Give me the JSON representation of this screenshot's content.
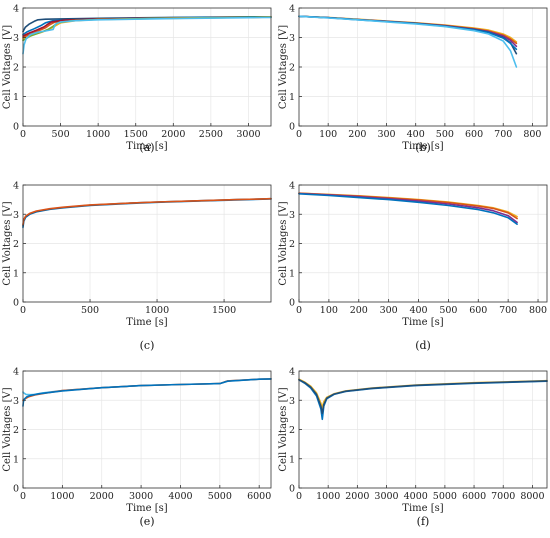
{
  "figure": {
    "colors": [
      "#0072BD",
      "#D95319",
      "#EDB120",
      "#7E2F8E",
      "#77AC30",
      "#4DBEEE",
      "#A2142F",
      "#1F4E79"
    ],
    "grid": true
  },
  "chart_data": [
    {
      "type": "line",
      "panel": "top-left",
      "caption": "(a)",
      "xlabel": "Time [s]",
      "ylabel": "Cell Voltages [V]",
      "xlim": [
        0,
        3300
      ],
      "ylim": [
        0,
        4
      ],
      "xticks": [
        0,
        500,
        1000,
        1500,
        2000,
        2500,
        3000
      ],
      "yticks": [
        0,
        1,
        2,
        3,
        4
      ],
      "series": [
        {
          "color": "#1F4E79",
          "x": [
            0,
            30,
            80,
            150,
            200,
            300,
            500,
            1000,
            2000,
            3000,
            3300
          ],
          "y": [
            3.2,
            3.35,
            3.45,
            3.55,
            3.6,
            3.62,
            3.63,
            3.65,
            3.68,
            3.7,
            3.7
          ]
        },
        {
          "color": "#0072BD",
          "x": [
            0,
            60,
            150,
            250,
            300,
            400,
            600,
            1000,
            2000,
            3000,
            3300
          ],
          "y": [
            3.1,
            3.2,
            3.3,
            3.42,
            3.5,
            3.57,
            3.6,
            3.63,
            3.67,
            3.69,
            3.7
          ]
        },
        {
          "color": "#D95319",
          "x": [
            0,
            100,
            200,
            300,
            350,
            420,
            600,
            1000,
            2000,
            3000,
            3300
          ],
          "y": [
            3.0,
            3.12,
            3.22,
            3.33,
            3.42,
            3.52,
            3.58,
            3.62,
            3.66,
            3.68,
            3.69
          ]
        },
        {
          "color": "#A2142F",
          "x": [
            0,
            80,
            180,
            280,
            330,
            380,
            550,
            1000,
            2000,
            3000,
            3300
          ],
          "y": [
            3.05,
            3.15,
            3.25,
            3.36,
            3.45,
            3.53,
            3.59,
            3.63,
            3.66,
            3.68,
            3.69
          ]
        },
        {
          "color": "#EDB120",
          "x": [
            0,
            120,
            250,
            350,
            420,
            500,
            700,
            1000,
            2000,
            3000,
            3300
          ],
          "y": [
            2.95,
            3.08,
            3.18,
            3.28,
            3.38,
            3.5,
            3.57,
            3.61,
            3.66,
            3.68,
            3.69
          ]
        },
        {
          "color": "#77AC30",
          "x": [
            0,
            100,
            220,
            330,
            400,
            460,
            650,
            1000,
            2000,
            3000,
            3300
          ],
          "y": [
            2.9,
            3.05,
            3.16,
            3.27,
            3.38,
            3.5,
            3.57,
            3.61,
            3.65,
            3.68,
            3.69
          ]
        },
        {
          "color": "#4DBEEE",
          "x": [
            0,
            15,
            40,
            100,
            200,
            300,
            400,
            430,
            500,
            700,
            1000,
            2000,
            3000,
            3300
          ],
          "y": [
            2.45,
            2.75,
            2.95,
            3.1,
            3.18,
            3.22,
            3.27,
            3.45,
            3.53,
            3.57,
            3.6,
            3.64,
            3.67,
            3.68
          ]
        }
      ]
    },
    {
      "type": "line",
      "panel": "top-right",
      "caption": "(b)",
      "xlabel": "Time [s]",
      "ylabel": "Cell Voltages [V]",
      "xlim": [
        0,
        850
      ],
      "ylim": [
        0,
        4
      ],
      "xticks": [
        0,
        100,
        200,
        300,
        400,
        500,
        600,
        700,
        800
      ],
      "yticks": [
        0,
        1,
        2,
        3,
        4
      ],
      "series": [
        {
          "color": "#EDB120",
          "x": [
            0,
            100,
            200,
            300,
            400,
            500,
            600,
            650,
            700,
            725,
            745
          ],
          "y": [
            3.72,
            3.68,
            3.62,
            3.56,
            3.5,
            3.42,
            3.32,
            3.25,
            3.12,
            3.0,
            2.85
          ]
        },
        {
          "color": "#D95319",
          "x": [
            0,
            100,
            200,
            300,
            400,
            500,
            600,
            650,
            700,
            725,
            745
          ],
          "y": [
            3.72,
            3.67,
            3.61,
            3.55,
            3.49,
            3.41,
            3.3,
            3.22,
            3.08,
            2.95,
            2.8
          ]
        },
        {
          "color": "#7E2F8E",
          "x": [
            0,
            100,
            200,
            300,
            400,
            500,
            600,
            650,
            700,
            725,
            745
          ],
          "y": [
            3.72,
            3.67,
            3.61,
            3.55,
            3.48,
            3.4,
            3.28,
            3.2,
            3.05,
            2.9,
            2.7
          ]
        },
        {
          "color": "#1F4E79",
          "x": [
            0,
            100,
            200,
            300,
            400,
            500,
            600,
            650,
            700,
            725,
            745
          ],
          "y": [
            3.72,
            3.67,
            3.61,
            3.54,
            3.48,
            3.39,
            3.27,
            3.18,
            3.0,
            2.82,
            2.45
          ]
        },
        {
          "color": "#0072BD",
          "x": [
            0,
            100,
            200,
            300,
            400,
            500,
            600,
            650,
            700,
            725,
            745
          ],
          "y": [
            3.72,
            3.67,
            3.6,
            3.54,
            3.47,
            3.38,
            3.26,
            3.17,
            2.98,
            2.8,
            2.6
          ]
        },
        {
          "color": "#4DBEEE",
          "x": [
            0,
            100,
            200,
            300,
            400,
            500,
            600,
            650,
            700,
            725,
            745
          ],
          "y": [
            3.72,
            3.66,
            3.6,
            3.53,
            3.46,
            3.37,
            3.23,
            3.12,
            2.88,
            2.55,
            2.0
          ]
        }
      ]
    },
    {
      "type": "line",
      "panel": "middle-left",
      "caption": "(c)",
      "xlabel": "Time [s]",
      "ylabel": "Cell Voltages [V]",
      "xlim": [
        0,
        1850
      ],
      "ylim": [
        0,
        4
      ],
      "xticks": [
        0,
        500,
        1000,
        1500
      ],
      "yticks": [
        0,
        1,
        2,
        3,
        4
      ],
      "series": [
        {
          "color": "#0072BD",
          "x": [
            0,
            5,
            20,
            50,
            100,
            200,
            300,
            500,
            800,
            1000,
            1300,
            1600,
            1850
          ],
          "y": [
            2.55,
            2.75,
            2.9,
            3.0,
            3.08,
            3.17,
            3.22,
            3.3,
            3.37,
            3.41,
            3.45,
            3.49,
            3.52
          ]
        },
        {
          "color": "#1F4E79",
          "x": [
            0,
            5,
            20,
            50,
            100,
            200,
            300,
            500,
            800,
            1000,
            1300,
            1600,
            1850
          ],
          "y": [
            2.6,
            2.8,
            2.92,
            3.02,
            3.1,
            3.18,
            3.23,
            3.31,
            3.38,
            3.42,
            3.46,
            3.5,
            3.53
          ]
        },
        {
          "color": "#D95319",
          "x": [
            0,
            5,
            20,
            50,
            100,
            200,
            300,
            500,
            800,
            1000,
            1300,
            1600,
            1850
          ],
          "y": [
            2.65,
            2.82,
            2.94,
            3.03,
            3.11,
            3.19,
            3.24,
            3.32,
            3.38,
            3.42,
            3.46,
            3.5,
            3.53
          ]
        }
      ]
    },
    {
      "type": "line",
      "panel": "middle-right",
      "caption": "(d)",
      "xlabel": "Time [s]",
      "ylabel": "Cell Voltages [V]",
      "xlim": [
        0,
        830
      ],
      "ylim": [
        0,
        4
      ],
      "xticks": [
        0,
        100,
        200,
        300,
        400,
        500,
        600,
        700,
        800
      ],
      "yticks": [
        0,
        1,
        2,
        3,
        4
      ],
      "series": [
        {
          "color": "#EDB120",
          "x": [
            0,
            100,
            200,
            300,
            400,
            500,
            600,
            650,
            700,
            730
          ],
          "y": [
            3.72,
            3.68,
            3.63,
            3.57,
            3.5,
            3.42,
            3.3,
            3.22,
            3.08,
            2.92
          ]
        },
        {
          "color": "#D95319",
          "x": [
            0,
            100,
            200,
            300,
            400,
            500,
            600,
            650,
            700,
            730
          ],
          "y": [
            3.72,
            3.67,
            3.62,
            3.56,
            3.49,
            3.4,
            3.28,
            3.2,
            3.05,
            2.85
          ]
        },
        {
          "color": "#7E2F8E",
          "x": [
            0,
            100,
            200,
            300,
            400,
            500,
            600,
            650,
            700,
            730
          ],
          "y": [
            3.71,
            3.66,
            3.6,
            3.53,
            3.45,
            3.35,
            3.22,
            3.12,
            2.95,
            2.72
          ]
        },
        {
          "color": "#0072BD",
          "x": [
            0,
            100,
            200,
            300,
            400,
            500,
            600,
            650,
            700,
            730
          ],
          "y": [
            3.7,
            3.64,
            3.57,
            3.5,
            3.41,
            3.3,
            3.16,
            3.05,
            2.88,
            2.66
          ]
        }
      ]
    },
    {
      "type": "line",
      "panel": "bottom-left",
      "caption": "(e)",
      "xlabel": "Time [s]",
      "ylabel": "Cell Voltages [V]",
      "xlim": [
        0,
        6300
      ],
      "ylim": [
        0,
        4
      ],
      "xticks": [
        0,
        1000,
        2000,
        3000,
        4000,
        5000,
        6000
      ],
      "yticks": [
        0,
        1,
        2,
        3,
        4
      ],
      "series": [
        {
          "color": "#4DBEEE",
          "x": [
            0,
            20,
            80,
            200,
            300,
            500,
            1000,
            2000,
            3000,
            4000,
            5000,
            5200,
            6000,
            6300
          ],
          "y": [
            3.28,
            3.25,
            3.2,
            3.19,
            3.2,
            3.25,
            3.33,
            3.43,
            3.5,
            3.54,
            3.57,
            3.66,
            3.72,
            3.73
          ]
        },
        {
          "color": "#D95319",
          "x": [
            0,
            50,
            150,
            300,
            600,
            1000,
            2000,
            3000,
            4000,
            5000,
            5200,
            6000,
            6300
          ],
          "y": [
            3.0,
            3.05,
            3.12,
            3.18,
            3.25,
            3.33,
            3.43,
            3.5,
            3.54,
            3.57,
            3.66,
            3.72,
            3.73
          ]
        },
        {
          "color": "#0072BD",
          "x": [
            0,
            10,
            40,
            100,
            200,
            400,
            1000,
            2000,
            3000,
            4000,
            5000,
            5200,
            6000,
            6300
          ],
          "y": [
            2.8,
            2.95,
            3.05,
            3.12,
            3.17,
            3.22,
            3.32,
            3.43,
            3.5,
            3.54,
            3.57,
            3.65,
            3.72,
            3.73
          ]
        }
      ]
    },
    {
      "type": "line",
      "panel": "bottom-right",
      "caption": "(f)",
      "xlabel": "Time [s]",
      "ylabel": "Cell Voltages [V]",
      "xlim": [
        0,
        8500
      ],
      "ylim": [
        0,
        4
      ],
      "xticks": [
        0,
        1000,
        2000,
        3000,
        4000,
        5000,
        6000,
        7000,
        8000
      ],
      "yticks": [
        0,
        1,
        2,
        3,
        4
      ],
      "series": [
        {
          "color": "#EDB120",
          "x": [
            0,
            200,
            400,
            600,
            750,
            800,
            850,
            950,
            1200,
            1600,
            2500,
            4000,
            6000,
            8500
          ],
          "y": [
            3.72,
            3.62,
            3.48,
            3.25,
            2.9,
            2.75,
            2.95,
            3.1,
            3.22,
            3.32,
            3.42,
            3.52,
            3.6,
            3.67
          ]
        },
        {
          "color": "#0072BD",
          "x": [
            0,
            200,
            400,
            600,
            750,
            800,
            850,
            950,
            1200,
            1600,
            2500,
            4000,
            6000,
            8500
          ],
          "y": [
            3.7,
            3.58,
            3.42,
            3.15,
            2.7,
            2.35,
            2.8,
            3.05,
            3.2,
            3.3,
            3.4,
            3.5,
            3.58,
            3.65
          ]
        },
        {
          "color": "#1F4E79",
          "x": [
            0,
            200,
            400,
            600,
            750,
            800,
            850,
            950,
            1200,
            1600,
            2500,
            4000,
            6000,
            8500
          ],
          "y": [
            3.7,
            3.6,
            3.45,
            3.2,
            2.8,
            2.55,
            2.85,
            3.07,
            3.21,
            3.31,
            3.41,
            3.51,
            3.59,
            3.66
          ]
        }
      ]
    }
  ]
}
